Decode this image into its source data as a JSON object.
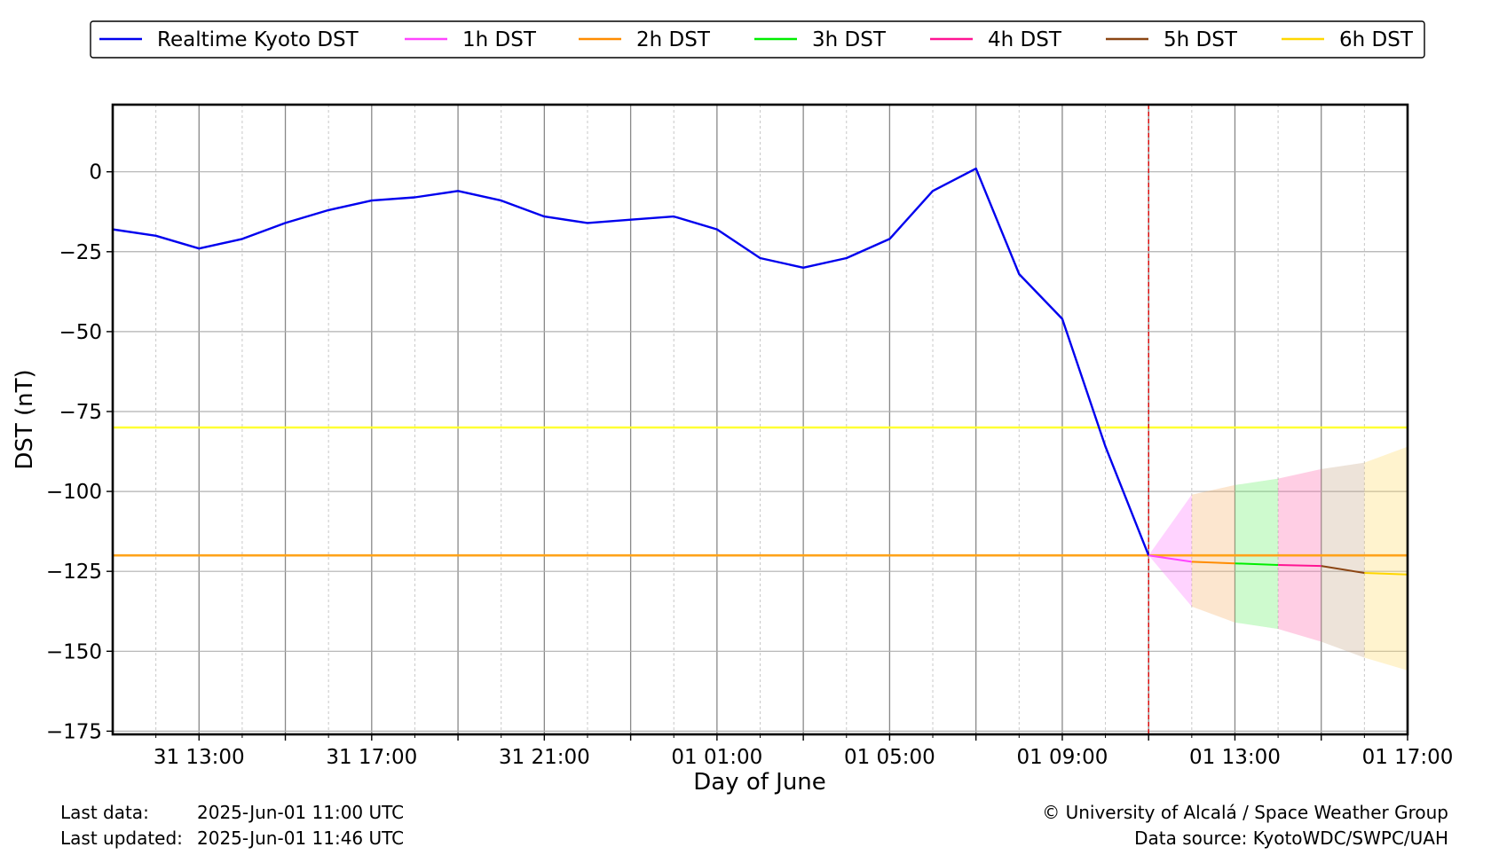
{
  "chart_data": {
    "type": "line",
    "title": "",
    "xlabel": "Day of June",
    "ylabel": "DST (nT)",
    "x_tick_labels": [
      {
        "hour": 13,
        "label": "31 13:00"
      },
      {
        "hour": 17,
        "label": "31 17:00"
      },
      {
        "hour": 21,
        "label": "31 21:00"
      },
      {
        "hour": 25,
        "label": "01 01:00"
      },
      {
        "hour": 29,
        "label": "01 05:00"
      },
      {
        "hour": 33,
        "label": "01 09:00"
      },
      {
        "hour": 37,
        "label": "01 13:00"
      },
      {
        "hour": 41,
        "label": "01 17:00"
      }
    ],
    "x_note": "hour values are hours counted from 2025-05-31 00:00 UTC",
    "xlim": [
      11,
      41
    ],
    "ylim": [
      -176,
      21
    ],
    "y_ticks": [
      0,
      -25,
      -50,
      -75,
      -100,
      -125,
      -150,
      -175
    ],
    "y_tick_labels": [
      "0",
      "−25",
      "−50",
      "−75",
      "−100",
      "−125",
      "−150",
      "−175"
    ],
    "grid": true,
    "legend_position": "top, outside plot",
    "legend": [
      {
        "name": "Realtime Kyoto DST",
        "color": "#0000ee"
      },
      {
        "name": "1h DST",
        "color": "#ff44ff"
      },
      {
        "name": "2h DST",
        "color": "#ff8c00"
      },
      {
        "name": "3h DST",
        "color": "#00ee00"
      },
      {
        "name": "4h DST",
        "color": "#ff1493"
      },
      {
        "name": "5h DST",
        "color": "#8b4513"
      },
      {
        "name": "6h DST",
        "color": "#ffd700"
      }
    ],
    "series": [
      {
        "name": "Realtime Kyoto DST",
        "color": "#0000ee",
        "points": [
          [
            11,
            -18
          ],
          [
            12,
            -20
          ],
          [
            13,
            -24
          ],
          [
            14,
            -21
          ],
          [
            15,
            -16
          ],
          [
            16,
            -12
          ],
          [
            17,
            -9
          ],
          [
            18,
            -8
          ],
          [
            19,
            -6
          ],
          [
            20,
            -9
          ],
          [
            21,
            -14
          ],
          [
            22,
            -16
          ],
          [
            23,
            -15
          ],
          [
            24,
            -14
          ],
          [
            25,
            -18
          ],
          [
            26,
            -27
          ],
          [
            27,
            -30
          ],
          [
            28,
            -27
          ],
          [
            29,
            -21
          ],
          [
            30,
            -6
          ],
          [
            31,
            1
          ],
          [
            32,
            -32
          ],
          [
            33,
            -46
          ],
          [
            34,
            -86
          ],
          [
            35,
            -120
          ]
        ]
      },
      {
        "name": "1h DST",
        "color": "#ff44ff",
        "points": [
          [
            35,
            -120
          ],
          [
            36,
            -122
          ]
        ],
        "band": {
          "upper": [
            -120,
            -101
          ],
          "lower": [
            -120,
            -136
          ],
          "fill": "#ff77ff"
        }
      },
      {
        "name": "2h DST",
        "color": "#ff8c00",
        "points": [
          [
            36,
            -122
          ],
          [
            37,
            -122.5
          ]
        ],
        "band": {
          "upper": [
            -101,
            -98
          ],
          "lower": [
            -136,
            -141
          ],
          "fill": "#f5b06a"
        }
      },
      {
        "name": "3h DST",
        "color": "#00ee00",
        "points": [
          [
            37,
            -122.5
          ],
          [
            38,
            -123
          ]
        ],
        "band": {
          "upper": [
            -98,
            -96
          ],
          "lower": [
            -141,
            -143
          ],
          "fill": "#66ee66"
        }
      },
      {
        "name": "4h DST",
        "color": "#ff1493",
        "points": [
          [
            38,
            -123
          ],
          [
            39,
            -123.3
          ]
        ],
        "band": {
          "upper": [
            -96,
            -93
          ],
          "lower": [
            -143,
            -147
          ],
          "fill": "#ff66aa"
        }
      },
      {
        "name": "5h DST",
        "color": "#8b4513",
        "points": [
          [
            39,
            -123.3
          ],
          [
            40,
            -125.5
          ]
        ],
        "band": {
          "upper": [
            -93,
            -91
          ],
          "lower": [
            -147,
            -152
          ],
          "fill": "#c8a888"
        }
      },
      {
        "name": "6h DST",
        "color": "#ffd700",
        "points": [
          [
            40,
            -125.5
          ],
          [
            41,
            -126
          ]
        ],
        "band": {
          "upper": [
            -91,
            -86
          ],
          "lower": [
            -152,
            -156
          ],
          "fill": "#ffd966"
        }
      }
    ],
    "reference_lines": [
      {
        "y": -80,
        "color": "#ffff33"
      },
      {
        "y": -120,
        "color": "#ffa31a"
      }
    ],
    "vertical_marker": {
      "x": 35,
      "color": "#dd0000"
    }
  },
  "footer": {
    "last_data_label": "Last data:",
    "last_data_value": "2025-Jun-01 11:00 UTC",
    "last_updated_label": "Last updated:",
    "last_updated_value": "2025-Jun-01 11:46 UTC",
    "credit": "© University of Alcalá / Space Weather Group",
    "source": "Data source: KyotoWDC/SWPC/UAH"
  }
}
